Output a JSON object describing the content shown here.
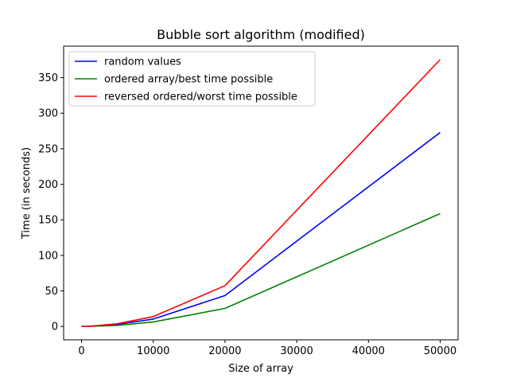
{
  "chart_data": {
    "type": "line",
    "title": "Bubble sort algorithm (modified)",
    "xlabel": "Size of array",
    "ylabel": "Time (in seconds)",
    "xlim": [
      -2500,
      52500
    ],
    "ylim": [
      -18.8,
      394.3
    ],
    "xticks": [
      0,
      10000,
      20000,
      30000,
      40000,
      50000
    ],
    "yticks": [
      0,
      50,
      100,
      150,
      200,
      250,
      300,
      350
    ],
    "grid": false,
    "legend_position": "top-left",
    "x": [
      0,
      1000,
      5000,
      10000,
      20000,
      50000
    ],
    "series": [
      {
        "name": "random values",
        "color": "#0000ff",
        "values": [
          0.1,
          0.2,
          2.9,
          10.4,
          43.5,
          272.9
        ]
      },
      {
        "name": "ordered array/best time possible",
        "color": "#008000",
        "values": [
          0.0,
          0.1,
          1.5,
          6.3,
          25.4,
          158.8
        ]
      },
      {
        "name": "reversed ordered/worst time possible",
        "color": "#ff0000",
        "values": [
          0.0,
          0.2,
          3.8,
          13.9,
          57.4,
          375.4
        ]
      }
    ]
  }
}
